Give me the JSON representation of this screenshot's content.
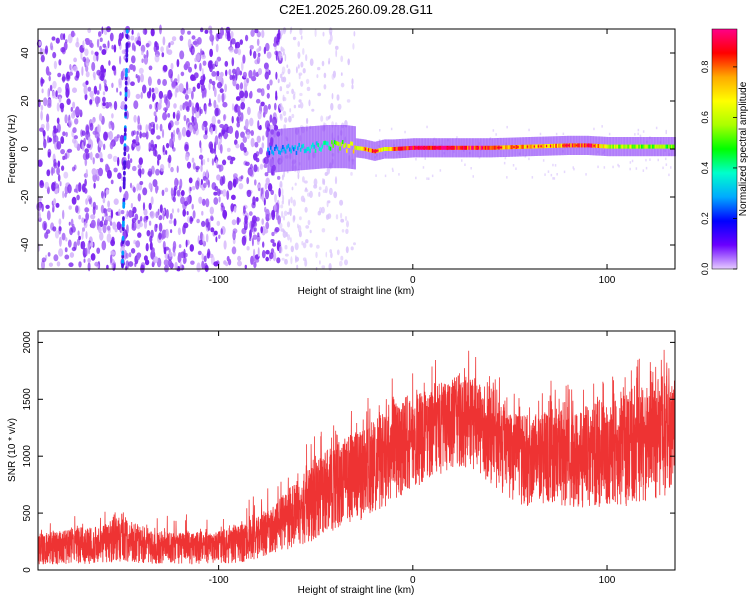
{
  "figure": {
    "title": "C2E1.2025.260.09.28.G11"
  },
  "chart_data": [
    {
      "id": "spectrogram",
      "type": "heatmap",
      "title": "C2E1.2025.260.09.28.G11",
      "xlabel": "Height of straight line (km)",
      "ylabel": "Frequency (Hz)",
      "xlim": [
        -193,
        135
      ],
      "ylim": [
        -50,
        50
      ],
      "xticks": [
        -100,
        0,
        100
      ],
      "xtick_labels": [
        "-100",
        "0",
        "100"
      ],
      "yticks": [
        -40,
        -20,
        0,
        20,
        40
      ],
      "ytick_labels": [
        "-40",
        "-20",
        "0",
        "20",
        "40"
      ],
      "colorbar": {
        "label": "Normalized spectral amplitude",
        "range": [
          0,
          0.95
        ],
        "ticks": [
          0,
          0.2,
          0.4,
          0.6,
          0.8
        ],
        "tick_labels": [
          "0.0",
          "0.2",
          "0.4",
          "0.6",
          "0.8"
        ],
        "colormap": [
          "#e6ccff",
          "#6a00ff",
          "#0000ff",
          "#00aaff",
          "#00ffcc",
          "#00ff00",
          "#aaff00",
          "#ffff00",
          "#ffaa00",
          "#ff0000",
          "#ff0088"
        ]
      },
      "features": {
        "noise_region_x": [
          -193,
          -68
        ],
        "noise_fade_x": [
          -68,
          -30
        ],
        "vertical_streak_x": [
          -152,
          -147
        ],
        "signal_ridge": {
          "x": [
            -75,
            -60,
            -45,
            -35,
            -25,
            -20,
            -15,
            -10,
            0,
            20,
            40,
            60,
            80,
            90,
            100,
            120,
            135
          ],
          "y": [
            -1,
            0,
            1,
            1,
            0,
            -1,
            0,
            0,
            0.5,
            0.5,
            0.5,
            1,
            1.5,
            1.5,
            1,
            1,
            1
          ],
          "amplitude": [
            0.25,
            0.3,
            0.4,
            0.6,
            0.7,
            0.8,
            0.6,
            0.85,
            0.9,
            0.9,
            0.85,
            0.7,
            0.8,
            0.9,
            0.6,
            0.55,
            0.5
          ]
        }
      }
    },
    {
      "id": "snr",
      "type": "line",
      "xlabel": "Height of straight line (km)",
      "ylabel": "SNR (10 * v/v)",
      "xlim": [
        -193,
        135
      ],
      "ylim": [
        0,
        2100
      ],
      "xticks": [
        -100,
        0,
        100
      ],
      "xtick_labels": [
        "-100",
        "0",
        "100"
      ],
      "yticks": [
        0,
        500,
        1000,
        1500,
        2000
      ],
      "ytick_labels": [
        "0",
        "500",
        "1000",
        "1500",
        "2000"
      ],
      "color": "#ee3333",
      "series": [
        {
          "name": "SNR",
          "x": [
            -193,
            -180,
            -170,
            -160,
            -150,
            -140,
            -130,
            -120,
            -110,
            -100,
            -90,
            -80,
            -70,
            -60,
            -50,
            -40,
            -30,
            -20,
            -10,
            0,
            10,
            20,
            30,
            40,
            50,
            60,
            70,
            80,
            90,
            100,
            110,
            120,
            130,
            135
          ],
          "lower": [
            40,
            50,
            50,
            60,
            70,
            60,
            50,
            50,
            50,
            50,
            60,
            100,
            150,
            200,
            250,
            350,
            400,
            500,
            600,
            700,
            800,
            900,
            900,
            750,
            600,
            550,
            600,
            550,
            550,
            550,
            550,
            600,
            650,
            650
          ],
          "upper": [
            350,
            380,
            420,
            420,
            550,
            420,
            380,
            360,
            370,
            380,
            420,
            520,
            650,
            850,
            1050,
            1200,
            1300,
            1400,
            1600,
            1650,
            1700,
            1800,
            1800,
            1750,
            1450,
            1450,
            1550,
            1500,
            1550,
            1600,
            1650,
            1750,
            1850,
            1750
          ],
          "mean": [
            200,
            210,
            230,
            240,
            280,
            240,
            220,
            210,
            210,
            220,
            250,
            320,
            400,
            520,
            650,
            780,
            850,
            950,
            1100,
            1150,
            1250,
            1350,
            1350,
            1250,
            1050,
            1000,
            1050,
            1020,
            1050,
            1050,
            1100,
            1150,
            1250,
            1200
          ]
        }
      ]
    }
  ]
}
